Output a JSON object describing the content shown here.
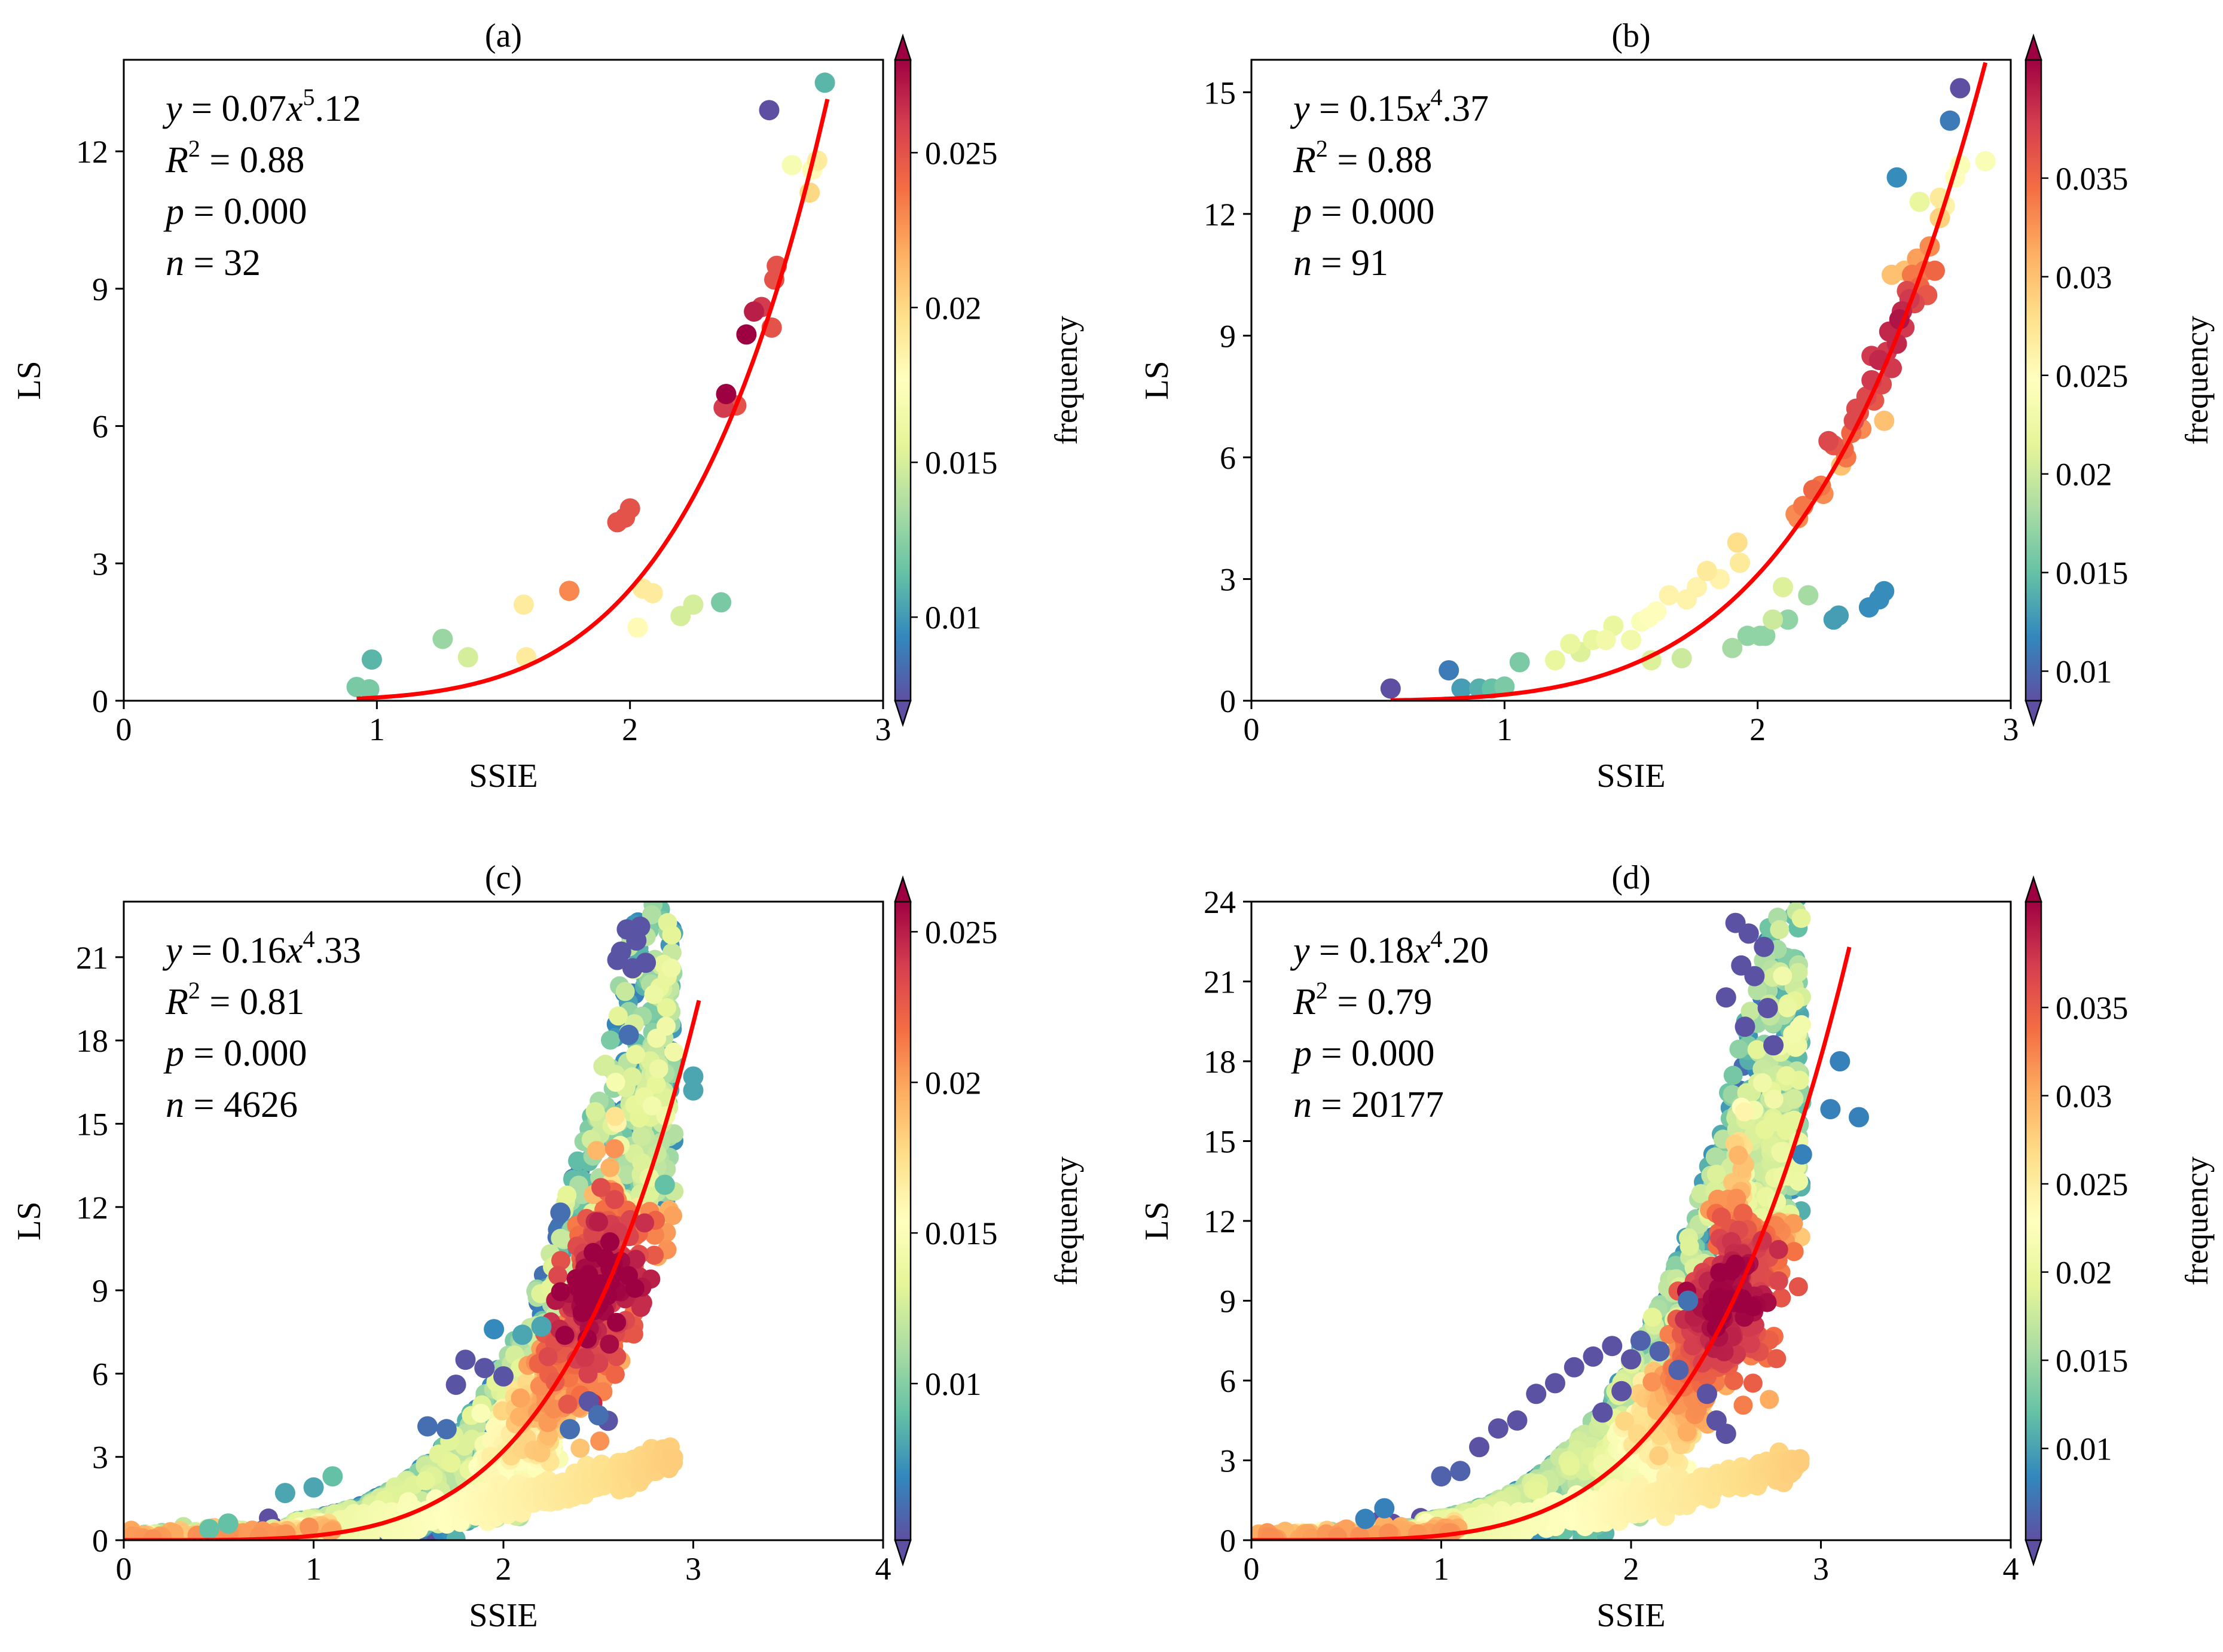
{
  "colormap_name": "Spectral_r",
  "colormap_stops": [
    "#5e4fa2",
    "#3288bd",
    "#66c2a5",
    "#abdda4",
    "#e6f598",
    "#ffffbf",
    "#fee08b",
    "#fdae61",
    "#f46d43",
    "#d53e4f",
    "#9e0142"
  ],
  "fit_color": "#ff0000",
  "chart_data": [
    {
      "panel": "(a)",
      "title": "(a)",
      "type": "scatter",
      "xlabel": "SSIE",
      "ylabel": "LS",
      "xlim": [
        0,
        3
      ],
      "ylim": [
        0,
        14
      ],
      "xticks": [
        0,
        1,
        2,
        3
      ],
      "yticks": [
        0,
        3,
        6,
        9,
        12
      ],
      "colorbar": {
        "label": "frequency",
        "range": [
          0.0073,
          0.028
        ],
        "ticks": [
          0.01,
          0.015,
          0.02,
          0.025
        ],
        "tick_labels": [
          "0.01",
          "0.015",
          "0.02",
          "0.025"
        ]
      },
      "annotation": {
        "a": "0.07",
        "b": "5",
        "c": ".12",
        "r2": "0.88",
        "p": "0.000",
        "n": "32"
      },
      "fit": {
        "a": 0.07,
        "b": 5.12,
        "x_range": [
          0.92,
          2.78
        ]
      },
      "points": [
        [
          0.92,
          0.3,
          0.012
        ],
        [
          0.97,
          0.25,
          0.012
        ],
        [
          0.98,
          0.9,
          0.011
        ],
        [
          1.26,
          1.35,
          0.013
        ],
        [
          1.36,
          0.95,
          0.015
        ],
        [
          1.58,
          2.1,
          0.019
        ],
        [
          1.59,
          0.95,
          0.019
        ],
        [
          1.76,
          2.4,
          0.023
        ],
        [
          1.95,
          3.9,
          0.025
        ],
        [
          1.98,
          4.0,
          0.025
        ],
        [
          2.0,
          4.2,
          0.025
        ],
        [
          2.03,
          1.6,
          0.018
        ],
        [
          2.05,
          2.45,
          0.019
        ],
        [
          2.09,
          2.35,
          0.019
        ],
        [
          2.2,
          1.85,
          0.015
        ],
        [
          2.25,
          2.1,
          0.015
        ],
        [
          2.36,
          2.15,
          0.012
        ],
        [
          2.37,
          6.4,
          0.026
        ],
        [
          2.38,
          6.7,
          0.028
        ],
        [
          2.42,
          6.45,
          0.025
        ],
        [
          2.46,
          8.0,
          0.028
        ],
        [
          2.49,
          8.5,
          0.027
        ],
        [
          2.52,
          8.6,
          0.026
        ],
        [
          2.55,
          12.9,
          0.0073
        ],
        [
          2.56,
          8.15,
          0.025
        ],
        [
          2.57,
          9.2,
          0.025
        ],
        [
          2.58,
          9.5,
          0.025
        ],
        [
          2.64,
          11.7,
          0.017
        ],
        [
          2.71,
          11.1,
          0.02
        ],
        [
          2.74,
          11.8,
          0.019
        ],
        [
          2.77,
          13.5,
          0.011
        ],
        [
          2.72,
          11.6,
          0.018
        ]
      ]
    },
    {
      "panel": "(b)",
      "title": "(b)",
      "type": "scatter",
      "xlabel": "SSIE",
      "ylabel": "LS",
      "xlim": [
        0,
        3
      ],
      "ylim": [
        0,
        15.8
      ],
      "xticks": [
        0,
        1,
        2,
        3
      ],
      "yticks": [
        0,
        3,
        6,
        9,
        12,
        15
      ],
      "colorbar": {
        "label": "frequency",
        "range": [
          0.0085,
          0.041
        ],
        "ticks": [
          0.01,
          0.015,
          0.02,
          0.025,
          0.03,
          0.035
        ],
        "tick_labels": [
          "0.01",
          "0.015",
          "0.02",
          "0.025",
          "0.03",
          "0.035"
        ]
      },
      "annotation": {
        "a": "0.15",
        "b": "4",
        "c": ".37",
        "r2": "0.88",
        "p": "0.000",
        "n": "91"
      },
      "fit": {
        "a": 0.15,
        "b": 4.37,
        "x_range": [
          0.55,
          2.9
        ]
      },
      "points": [
        [
          0.55,
          0.3,
          0.0085
        ],
        [
          0.78,
          0.75,
          0.011
        ],
        [
          0.83,
          0.3,
          0.013
        ],
        [
          0.9,
          0.3,
          0.014
        ],
        [
          0.95,
          0.3,
          0.015
        ],
        [
          1.0,
          0.35,
          0.016
        ],
        [
          1.06,
          0.95,
          0.016
        ],
        [
          1.2,
          1.0,
          0.022
        ],
        [
          1.26,
          1.4,
          0.022
        ],
        [
          1.3,
          1.2,
          0.021
        ],
        [
          1.35,
          1.5,
          0.022
        ],
        [
          1.4,
          1.5,
          0.023
        ],
        [
          1.43,
          1.85,
          0.022
        ],
        [
          1.5,
          1.5,
          0.023
        ],
        [
          1.54,
          1.95,
          0.024
        ],
        [
          1.57,
          2.05,
          0.025
        ],
        [
          1.6,
          2.2,
          0.025
        ],
        [
          1.65,
          2.6,
          0.026
        ],
        [
          1.58,
          1.0,
          0.021
        ],
        [
          1.7,
          1.05,
          0.02
        ],
        [
          1.72,
          2.5,
          0.026
        ],
        [
          1.76,
          2.8,
          0.026
        ],
        [
          1.8,
          3.2,
          0.027
        ],
        [
          1.9,
          1.3,
          0.018
        ],
        [
          1.92,
          3.9,
          0.028
        ],
        [
          1.93,
          3.4,
          0.027
        ],
        [
          1.96,
          1.6,
          0.017
        ],
        [
          2.01,
          1.6,
          0.017
        ],
        [
          2.03,
          1.6,
          0.017
        ],
        [
          2.1,
          2.8,
          0.021
        ],
        [
          2.12,
          2.0,
          0.017
        ],
        [
          2.15,
          4.6,
          0.033
        ],
        [
          2.18,
          4.8,
          0.034
        ],
        [
          2.22,
          5.2,
          0.035
        ],
        [
          2.25,
          5.3,
          0.034
        ],
        [
          2.2,
          2.6,
          0.018
        ],
        [
          2.3,
          2.0,
          0.013
        ],
        [
          2.32,
          2.1,
          0.013
        ],
        [
          2.28,
          6.4,
          0.037
        ],
        [
          2.3,
          6.3,
          0.036
        ],
        [
          2.33,
          5.8,
          0.03
        ],
        [
          2.35,
          6.0,
          0.034
        ],
        [
          2.37,
          6.6,
          0.035
        ],
        [
          2.38,
          6.9,
          0.037
        ],
        [
          2.4,
          7.1,
          0.036
        ],
        [
          2.41,
          6.7,
          0.033
        ],
        [
          2.43,
          7.5,
          0.037
        ],
        [
          2.45,
          7.9,
          0.038
        ],
        [
          2.46,
          7.4,
          0.036
        ],
        [
          2.48,
          8.4,
          0.039
        ],
        [
          2.49,
          7.8,
          0.037
        ],
        [
          2.5,
          6.9,
          0.03
        ],
        [
          2.51,
          8.6,
          0.038
        ],
        [
          2.52,
          9.1,
          0.039
        ],
        [
          2.53,
          8.2,
          0.038
        ],
        [
          2.55,
          8.8,
          0.039
        ],
        [
          2.56,
          9.4,
          0.04
        ],
        [
          2.57,
          9.6,
          0.039
        ],
        [
          2.58,
          9.2,
          0.038
        ],
        [
          2.59,
          10.1,
          0.037
        ],
        [
          2.6,
          9.9,
          0.038
        ],
        [
          2.61,
          10.5,
          0.034
        ],
        [
          2.62,
          9.8,
          0.037
        ],
        [
          2.63,
          10.9,
          0.032
        ],
        [
          2.64,
          10.2,
          0.035
        ],
        [
          2.66,
          10.6,
          0.034
        ],
        [
          2.68,
          11.2,
          0.033
        ],
        [
          2.67,
          10.0,
          0.036
        ],
        [
          2.7,
          10.6,
          0.035
        ],
        [
          2.72,
          11.9,
          0.029
        ],
        [
          2.74,
          12.2,
          0.026
        ],
        [
          2.78,
          12.9,
          0.025
        ],
        [
          2.8,
          13.2,
          0.024
        ],
        [
          2.72,
          12.4,
          0.027
        ],
        [
          2.48,
          2.5,
          0.012
        ],
        [
          2.5,
          2.7,
          0.012
        ],
        [
          2.44,
          2.3,
          0.012
        ],
        [
          2.55,
          12.9,
          0.012
        ],
        [
          2.76,
          14.3,
          0.011
        ],
        [
          2.8,
          15.1,
          0.0085
        ],
        [
          2.9,
          13.3,
          0.024
        ],
        [
          2.64,
          12.3,
          0.022
        ],
        [
          2.58,
          10.6,
          0.03
        ],
        [
          2.53,
          10.5,
          0.03
        ],
        [
          2.45,
          8.5,
          0.038
        ],
        [
          2.39,
          7.2,
          0.037
        ],
        [
          2.34,
          6.2,
          0.035
        ],
        [
          2.26,
          5.1,
          0.033
        ],
        [
          2.16,
          4.5,
          0.033
        ],
        [
          2.06,
          2.0,
          0.02
        ],
        [
          1.85,
          3.0,
          0.026
        ]
      ]
    },
    {
      "panel": "(c)",
      "title": "(c)",
      "type": "scatter",
      "xlabel": "SSIE",
      "ylabel": "LS",
      "xlim": [
        0,
        4
      ],
      "ylim": [
        0,
        23
      ],
      "xticks": [
        0,
        1,
        2,
        3,
        4
      ],
      "yticks": [
        0,
        3,
        6,
        9,
        12,
        15,
        18,
        21
      ],
      "colorbar": {
        "label": "frequency",
        "range": [
          0.0048,
          0.026
        ],
        "ticks": [
          0.01,
          0.015,
          0.02,
          0.025
        ],
        "tick_labels": [
          "0.01",
          "0.015",
          "0.02",
          "0.025"
        ]
      },
      "annotation": {
        "a": "0.16",
        "b": "4",
        "c": ".33",
        "r2": "0.81",
        "p": "0.000",
        "n": "4626"
      },
      "fit": {
        "a": 0.16,
        "b": 4.33,
        "x_range": [
          0.0,
          3.03
        ]
      },
      "points": [
        [
          2.65,
          22.0,
          0.005
        ],
        [
          2.7,
          21.6,
          0.005
        ],
        [
          2.62,
          21.2,
          0.005
        ],
        [
          2.75,
          20.8,
          0.005
        ],
        [
          2.68,
          20.6,
          0.005
        ],
        [
          2.6,
          20.9,
          0.005
        ],
        [
          2.72,
          22.1,
          0.005
        ],
        [
          2.66,
          18.2,
          0.006
        ],
        [
          2.85,
          12.8,
          0.009
        ],
        [
          3.0,
          16.7,
          0.008
        ],
        [
          3.0,
          16.2,
          0.008
        ],
        [
          2.3,
          11.8,
          0.006
        ],
        [
          1.9,
          6.2,
          0.005
        ],
        [
          1.8,
          6.5,
          0.005
        ],
        [
          1.75,
          5.6,
          0.005
        ],
        [
          2.0,
          5.9,
          0.005
        ],
        [
          1.6,
          4.1,
          0.006
        ],
        [
          1.7,
          4.0,
          0.006
        ],
        [
          2.5,
          4.5,
          0.006
        ],
        [
          2.45,
          5.0,
          0.005
        ],
        [
          2.55,
          4.3,
          0.005
        ],
        [
          0.85,
          1.7,
          0.008
        ],
        [
          1.0,
          1.9,
          0.008
        ],
        [
          1.1,
          2.3,
          0.009
        ],
        [
          0.55,
          0.6,
          0.009
        ],
        [
          0.45,
          0.4,
          0.009
        ],
        [
          2.1,
          7.4,
          0.008
        ],
        [
          2.2,
          7.7,
          0.008
        ],
        [
          2.35,
          4.0,
          0.006
        ],
        [
          1.95,
          7.6,
          0.007
        ]
      ]
    },
    {
      "panel": "(d)",
      "title": "(d)",
      "type": "scatter",
      "xlabel": "SSIE",
      "ylabel": "LS",
      "xlim": [
        0,
        4
      ],
      "ylim": [
        0,
        24
      ],
      "xticks": [
        0,
        1,
        2,
        3,
        4
      ],
      "yticks": [
        0,
        3,
        6,
        9,
        12,
        15,
        18,
        21,
        24
      ],
      "colorbar": {
        "label": "frequency",
        "range": [
          0.0048,
          0.041
        ],
        "ticks": [
          0.01,
          0.015,
          0.02,
          0.025,
          0.03,
          0.035
        ],
        "tick_labels": [
          "0.01",
          "0.015",
          "0.02",
          "0.025",
          "0.03",
          "0.035"
        ]
      },
      "annotation": {
        "a": "0.18",
        "b": "4",
        "c": ".20",
        "r2": "0.79",
        "p": "0.000",
        "n": "20177"
      },
      "fit": {
        "a": 0.18,
        "b": 4.2,
        "x_range": [
          0.0,
          3.15
        ]
      },
      "points": [
        [
          2.55,
          23.2,
          0.005
        ],
        [
          2.62,
          22.8,
          0.005
        ],
        [
          2.7,
          22.3,
          0.005
        ],
        [
          2.58,
          21.6,
          0.005
        ],
        [
          2.65,
          21.2,
          0.005
        ],
        [
          2.5,
          20.4,
          0.005
        ],
        [
          2.72,
          20.0,
          0.005
        ],
        [
          2.6,
          19.3,
          0.005
        ],
        [
          2.75,
          18.6,
          0.005
        ],
        [
          3.1,
          18.0,
          0.008
        ],
        [
          3.2,
          15.9,
          0.008
        ],
        [
          3.05,
          16.2,
          0.008
        ],
        [
          2.9,
          14.5,
          0.008
        ],
        [
          2.0,
          6.8,
          0.005
        ],
        [
          1.9,
          7.3,
          0.005
        ],
        [
          1.8,
          6.9,
          0.005
        ],
        [
          1.7,
          6.5,
          0.005
        ],
        [
          1.6,
          5.9,
          0.005
        ],
        [
          1.5,
          5.5,
          0.005
        ],
        [
          1.4,
          4.5,
          0.005
        ],
        [
          1.3,
          4.2,
          0.005
        ],
        [
          1.2,
          3.5,
          0.005
        ],
        [
          1.1,
          2.6,
          0.006
        ],
        [
          1.0,
          2.4,
          0.006
        ],
        [
          0.7,
          1.2,
          0.008
        ],
        [
          0.6,
          0.8,
          0.008
        ],
        [
          2.05,
          7.5,
          0.006
        ],
        [
          2.15,
          7.1,
          0.006
        ],
        [
          2.25,
          6.4,
          0.006
        ],
        [
          2.4,
          5.5,
          0.005
        ],
        [
          2.45,
          4.5,
          0.005
        ],
        [
          2.5,
          4.0,
          0.005
        ],
        [
          1.95,
          5.6,
          0.005
        ],
        [
          1.85,
          4.8,
          0.005
        ],
        [
          2.3,
          9.0,
          0.007
        ]
      ]
    }
  ]
}
